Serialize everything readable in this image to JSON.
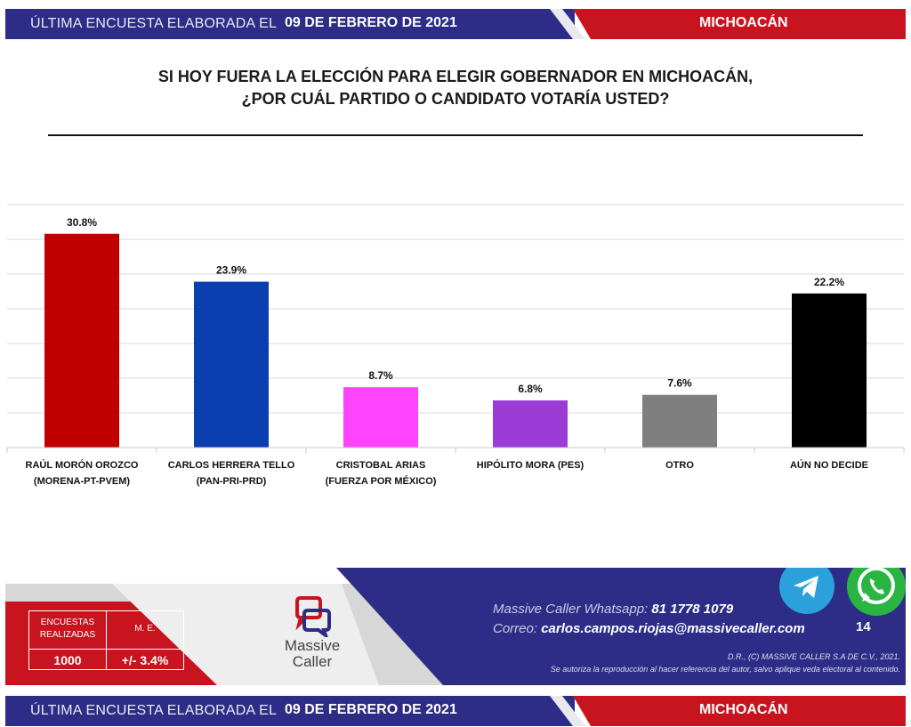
{
  "banner": {
    "lead": "ÚLTIMA ENCUESTA ELABORADA EL",
    "date": "09 DE FEBRERO DE 2021",
    "region": "MICHOACÁN"
  },
  "question": {
    "line1": "SI HOY FUERA LA ELECCIÓN PARA ELEGIR GOBERNADOR EN MICHOACÁN,",
    "line2": "¿POR CUÁL PARTIDO O CANDIDATO VOTARÍA USTED?"
  },
  "chart_data": {
    "type": "bar",
    "title": "",
    "xlabel": "",
    "ylabel": "",
    "ylim": [
      0,
      35
    ],
    "grid": true,
    "categories": [
      [
        "RAÚL MORÓN OROZCO",
        "(MORENA-PT-PVEM)"
      ],
      [
        "CARLOS HERRERA TELLO",
        "(PAN-PRI-PRD)"
      ],
      [
        "CRISTOBAL ARIAS",
        "(FUERZA POR MÉXICO)"
      ],
      [
        "HIPÓLITO MORA (PES)"
      ],
      [
        "OTRO"
      ],
      [
        "AÚN NO DECIDE"
      ]
    ],
    "values": [
      30.8,
      23.9,
      8.7,
      6.8,
      7.6,
      22.2
    ],
    "labels": [
      "30.8%",
      "23.9%",
      "8.7%",
      "6.8%",
      "7.6%",
      "22.2%"
    ],
    "colors": [
      "#c00000",
      "#0b3fb0",
      "#ff44ff",
      "#9b3cd6",
      "#7f7f7f",
      "#000000"
    ]
  },
  "footer": {
    "stats_header_1": "ENCUESTAS REALIZADAS",
    "stats_header_2": "M. E.",
    "stats_value_1": "1000",
    "stats_value_2": "+/- 3.4%",
    "logo_word_1": "Massive",
    "logo_word_2": "Caller",
    "whatsapp_label": "Massive Caller Whatsapp:",
    "whatsapp_number": "81 1778 1079",
    "email_label": "Correo:",
    "email": "carlos.campos.riojas@massivecaller.com",
    "legal_1": "D.R., (C) MASSIVE CALLER S.A DE C.V., 2021.",
    "legal_2": "Se autoriza la reproducción al hacer referencia del autor, salvo aplique veda electoral al contenido.",
    "page_number": "14",
    "icons": [
      "telegram-icon",
      "whatsapp-icon"
    ]
  },
  "colors": {
    "navy": "#2d2d87",
    "red": "#c8141e",
    "gray": "#d7d7d7"
  }
}
